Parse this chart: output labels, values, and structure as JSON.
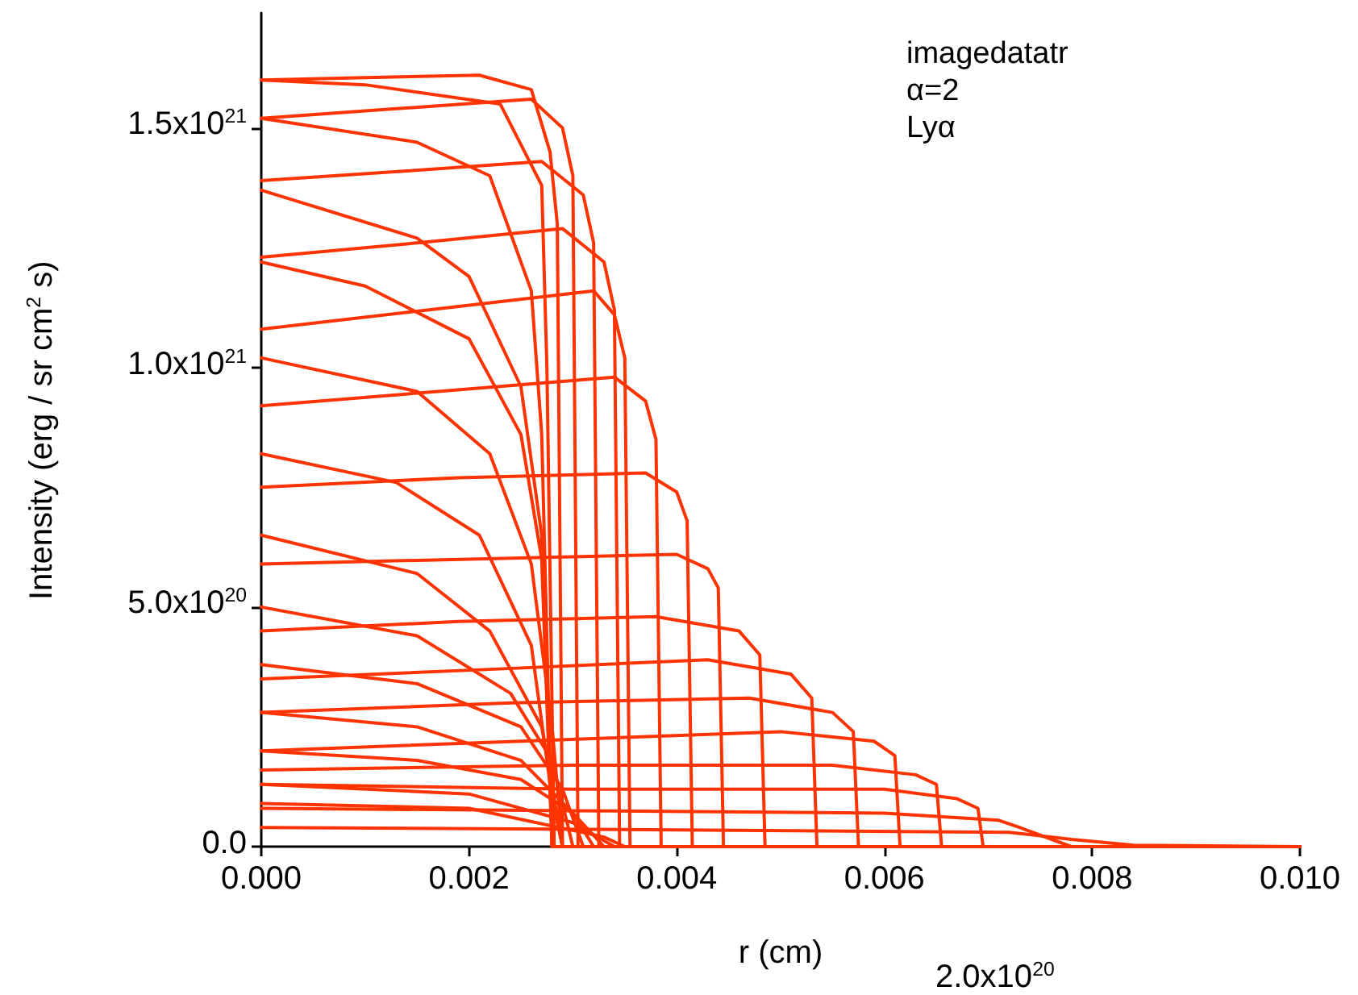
{
  "chart_data": {
    "type": "line",
    "xlabel": "r (cm)",
    "ylabel": "Intensity (erg / sr cm$^{2}$ s)",
    "annotations": [
      "imagedatatr",
      "α=2",
      "Lyα",
      "2.0x10$^{20}$"
    ],
    "xlim": [
      0,
      0.01
    ],
    "xticks": [
      {
        "value": 0,
        "label": "0.000"
      },
      {
        "value": 0.002,
        "label": "0.002"
      },
      {
        "value": 0.004,
        "label": "0.004"
      },
      {
        "value": 0.006,
        "label": "0.006"
      },
      {
        "value": 0.008,
        "label": "0.008"
      },
      {
        "value": 0.01,
        "label": "0.010"
      }
    ],
    "ylim": [
      0,
      1.74e+21
    ],
    "yticks": [
      {
        "value": 0,
        "label": "0.0"
      },
      {
        "value": 5e+20,
        "label": "5.0x10$^{20}$"
      },
      {
        "value": 1e+21,
        "label": "1.0x10$^{21}$"
      },
      {
        "value": 1.5e+21,
        "label": "1.5x10$^{21}$"
      }
    ],
    "grid": false,
    "marker": "none",
    "line_style": "solid",
    "series": [
      {
        "color": "#ff3300",
        "x": [
          0,
          0.001,
          0.0021,
          0.0026,
          0.00278,
          0.00285,
          0.0029,
          0.01
        ],
        "values": [
          1.6e+21,
          1.605e+21,
          1.61e+21,
          1.58e+21,
          1.45e+21,
          1.3e+21,
          0,
          0
        ]
      },
      {
        "color": "#ff3300",
        "x": [
          0,
          0.0013,
          0.0026,
          0.0029,
          0.003,
          0.00305,
          0.01
        ],
        "values": [
          1.52e+21,
          1.54e+21,
          1.56e+21,
          1.5e+21,
          1.4e+21,
          0,
          0
        ]
      },
      {
        "color": "#ff3300",
        "x": [
          0,
          0.0014,
          0.0027,
          0.0031,
          0.0032,
          0.00325,
          0.01
        ],
        "values": [
          1.39e+21,
          1.41e+21,
          1.43e+21,
          1.36e+21,
          1.26e+21,
          0,
          0
        ]
      },
      {
        "color": "#ff3300",
        "x": [
          0,
          0.0015,
          0.0029,
          0.0033,
          0.0034,
          0.00345,
          0.01
        ],
        "values": [
          1.23e+21,
          1.26e+21,
          1.29e+21,
          1.22e+21,
          1.12e+21,
          0,
          0
        ]
      },
      {
        "color": "#ff3300",
        "x": [
          0,
          0.0016,
          0.0032,
          0.0034,
          0.0035,
          0.00355,
          0.01
        ],
        "values": [
          1.08e+21,
          1.12e+21,
          1.16e+21,
          1.11e+21,
          1.02e+21,
          0,
          0
        ]
      },
      {
        "color": "#ff3300",
        "x": [
          0,
          0.0017,
          0.0034,
          0.0037,
          0.0038,
          0.00385,
          0.01
        ],
        "values": [
          9.2e+20,
          9.5e+20,
          9.8e+20,
          9.3e+20,
          8.5e+20,
          0,
          0
        ]
      },
      {
        "color": "#ff3300",
        "x": [
          0,
          0.0019,
          0.0037,
          0.004,
          0.0041,
          0.00415,
          0.01
        ],
        "values": [
          7.5e+20,
          7.7e+20,
          7.8e+20,
          7.4e+20,
          6.8e+20,
          0,
          0
        ]
      },
      {
        "color": "#ff3300",
        "x": [
          0,
          0.002,
          0.004,
          0.0043,
          0.0044,
          0.00445,
          0.01
        ],
        "values": [
          5.9e+20,
          6e+20,
          6.1e+20,
          5.8e+20,
          5.4e+20,
          0,
          0
        ]
      },
      {
        "color": "#ff3300",
        "x": [
          0,
          0.0019,
          0.0038,
          0.0046,
          0.0048,
          0.00485,
          0.01
        ],
        "values": [
          4.5e+20,
          4.7e+20,
          4.8e+20,
          4.5e+20,
          4e+20,
          0,
          0
        ]
      },
      {
        "color": "#ff3300",
        "x": [
          0,
          0.0022,
          0.0043,
          0.0051,
          0.0053,
          0.00535,
          0.01
        ],
        "values": [
          3.5e+20,
          3.7e+20,
          3.9e+20,
          3.6e+20,
          3.1e+20,
          0,
          0
        ]
      },
      {
        "color": "#ff3300",
        "x": [
          0,
          0.0024,
          0.0047,
          0.0055,
          0.0057,
          0.00575,
          0.01
        ],
        "values": [
          2.8e+20,
          3e+20,
          3.1e+20,
          2.8e+20,
          2.4e+20,
          0,
          0
        ]
      },
      {
        "color": "#ff3300",
        "x": [
          0,
          0.0025,
          0.005,
          0.0059,
          0.0061,
          0.00615,
          0.01
        ],
        "values": [
          2e+20,
          2.2e+20,
          2.4e+20,
          2.2e+20,
          1.9e+20,
          0,
          0
        ]
      },
      {
        "color": "#ff3300",
        "x": [
          0,
          0.003,
          0.0055,
          0.0063,
          0.0065,
          0.00655,
          0.01
        ],
        "values": [
          1.6e+20,
          1.7e+20,
          1.7e+20,
          1.5e+20,
          1.3e+20,
          0,
          0
        ]
      },
      {
        "color": "#ff3300",
        "x": [
          0,
          0.003,
          0.006,
          0.0067,
          0.0069,
          0.00695,
          0.01
        ],
        "values": [
          1.3e+20,
          1.2e+20,
          1.2e+20,
          1e+20,
          8e+19,
          0,
          0
        ]
      },
      {
        "color": "#ff3300",
        "x": [
          0,
          0.003,
          0.006,
          0.0071,
          0.0073,
          0.0078,
          0.01
        ],
        "values": [
          8e+19,
          7.5e+19,
          7e+19,
          5.5e+19,
          4e+19,
          0,
          0
        ]
      },
      {
        "color": "#ff3300",
        "x": [
          0,
          0.004,
          0.0072,
          0.0078,
          0.0084,
          0.01
        ],
        "values": [
          4e+19,
          3.5e+19,
          3e+19,
          1.5e+19,
          3e+18,
          0
        ]
      },
      {
        "color": "#ff3300",
        "x": [
          0,
          0.001,
          0.0023,
          0.0027,
          0.00275,
          0.00282,
          0.01
        ],
        "values": [
          1.6e+21,
          1.59e+21,
          1.55e+21,
          1.38e+21,
          1e+21,
          0,
          0
        ]
      },
      {
        "color": "#ff3300",
        "x": [
          0,
          0.0015,
          0.0022,
          0.0026,
          0.0027,
          0.0028,
          0.01
        ],
        "values": [
          1.52e+21,
          1.47e+21,
          1.4e+21,
          1.16e+21,
          8.6e+20,
          0,
          0
        ]
      },
      {
        "color": "#ff3300",
        "x": [
          0,
          0.0015,
          0.002,
          0.0025,
          0.0027,
          0.0028,
          0.01
        ],
        "values": [
          1.37e+21,
          1.27e+21,
          1.19e+21,
          9.6e+20,
          6.5e+20,
          0,
          0
        ]
      },
      {
        "color": "#ff3300",
        "x": [
          0,
          0.001,
          0.002,
          0.0025,
          0.0027,
          0.0028,
          0.01
        ],
        "values": [
          1.22e+21,
          1.17e+21,
          1.06e+21,
          8.6e+20,
          6e+20,
          0,
          0
        ]
      },
      {
        "color": "#ff3300",
        "x": [
          0,
          0.0015,
          0.0022,
          0.0026,
          0.0028,
          0.0029,
          0.01
        ],
        "values": [
          1.02e+21,
          9.5e+20,
          8.2e+20,
          5.9e+20,
          2.5e+20,
          0,
          0
        ]
      },
      {
        "color": "#ff3300",
        "x": [
          0,
          0.0013,
          0.0021,
          0.0026,
          0.0028,
          0.0029,
          0.01
        ],
        "values": [
          8.2e+20,
          7.6e+20,
          6.5e+20,
          4.2e+20,
          1e+20,
          0,
          0
        ]
      },
      {
        "color": "#ff3300",
        "x": [
          0,
          0.0015,
          0.0022,
          0.0027,
          0.0029,
          0.01
        ],
        "values": [
          6.5e+20,
          5.7e+20,
          4.5e+20,
          2.5e+20,
          0,
          0
        ]
      },
      {
        "color": "#ff3300",
        "x": [
          0,
          0.0015,
          0.0024,
          0.0028,
          0.003,
          0.01
        ],
        "values": [
          5e+20,
          4.4e+20,
          3.2e+20,
          1.8e+20,
          0,
          0
        ]
      },
      {
        "color": "#ff3300",
        "x": [
          0,
          0.0015,
          0.0025,
          0.0029,
          0.0031,
          0.01
        ],
        "values": [
          3.8e+20,
          3.4e+20,
          2.5e+20,
          1.2e+20,
          0,
          0
        ]
      },
      {
        "color": "#ff3300",
        "x": [
          0,
          0.0015,
          0.0025,
          0.003,
          0.0032,
          0.01
        ],
        "values": [
          2.8e+20,
          2.5e+20,
          1.8e+20,
          7e+19,
          0,
          0
        ]
      },
      {
        "color": "#ff3300",
        "x": [
          0,
          0.0015,
          0.0025,
          0.003,
          0.0033,
          0.01
        ],
        "values": [
          2e+20,
          1.8e+20,
          1.4e+20,
          7e+19,
          0,
          0
        ]
      },
      {
        "color": "#ff3300",
        "x": [
          0,
          0.002,
          0.003,
          0.0034,
          0.01
        ],
        "values": [
          1.3e+20,
          1.1e+20,
          5e+19,
          0,
          0
        ]
      },
      {
        "color": "#ff3300",
        "x": [
          0,
          0.002,
          0.0033,
          0.0035,
          0.01
        ],
        "values": [
          9e+19,
          8e+19,
          2e+19,
          0,
          0
        ]
      }
    ]
  }
}
